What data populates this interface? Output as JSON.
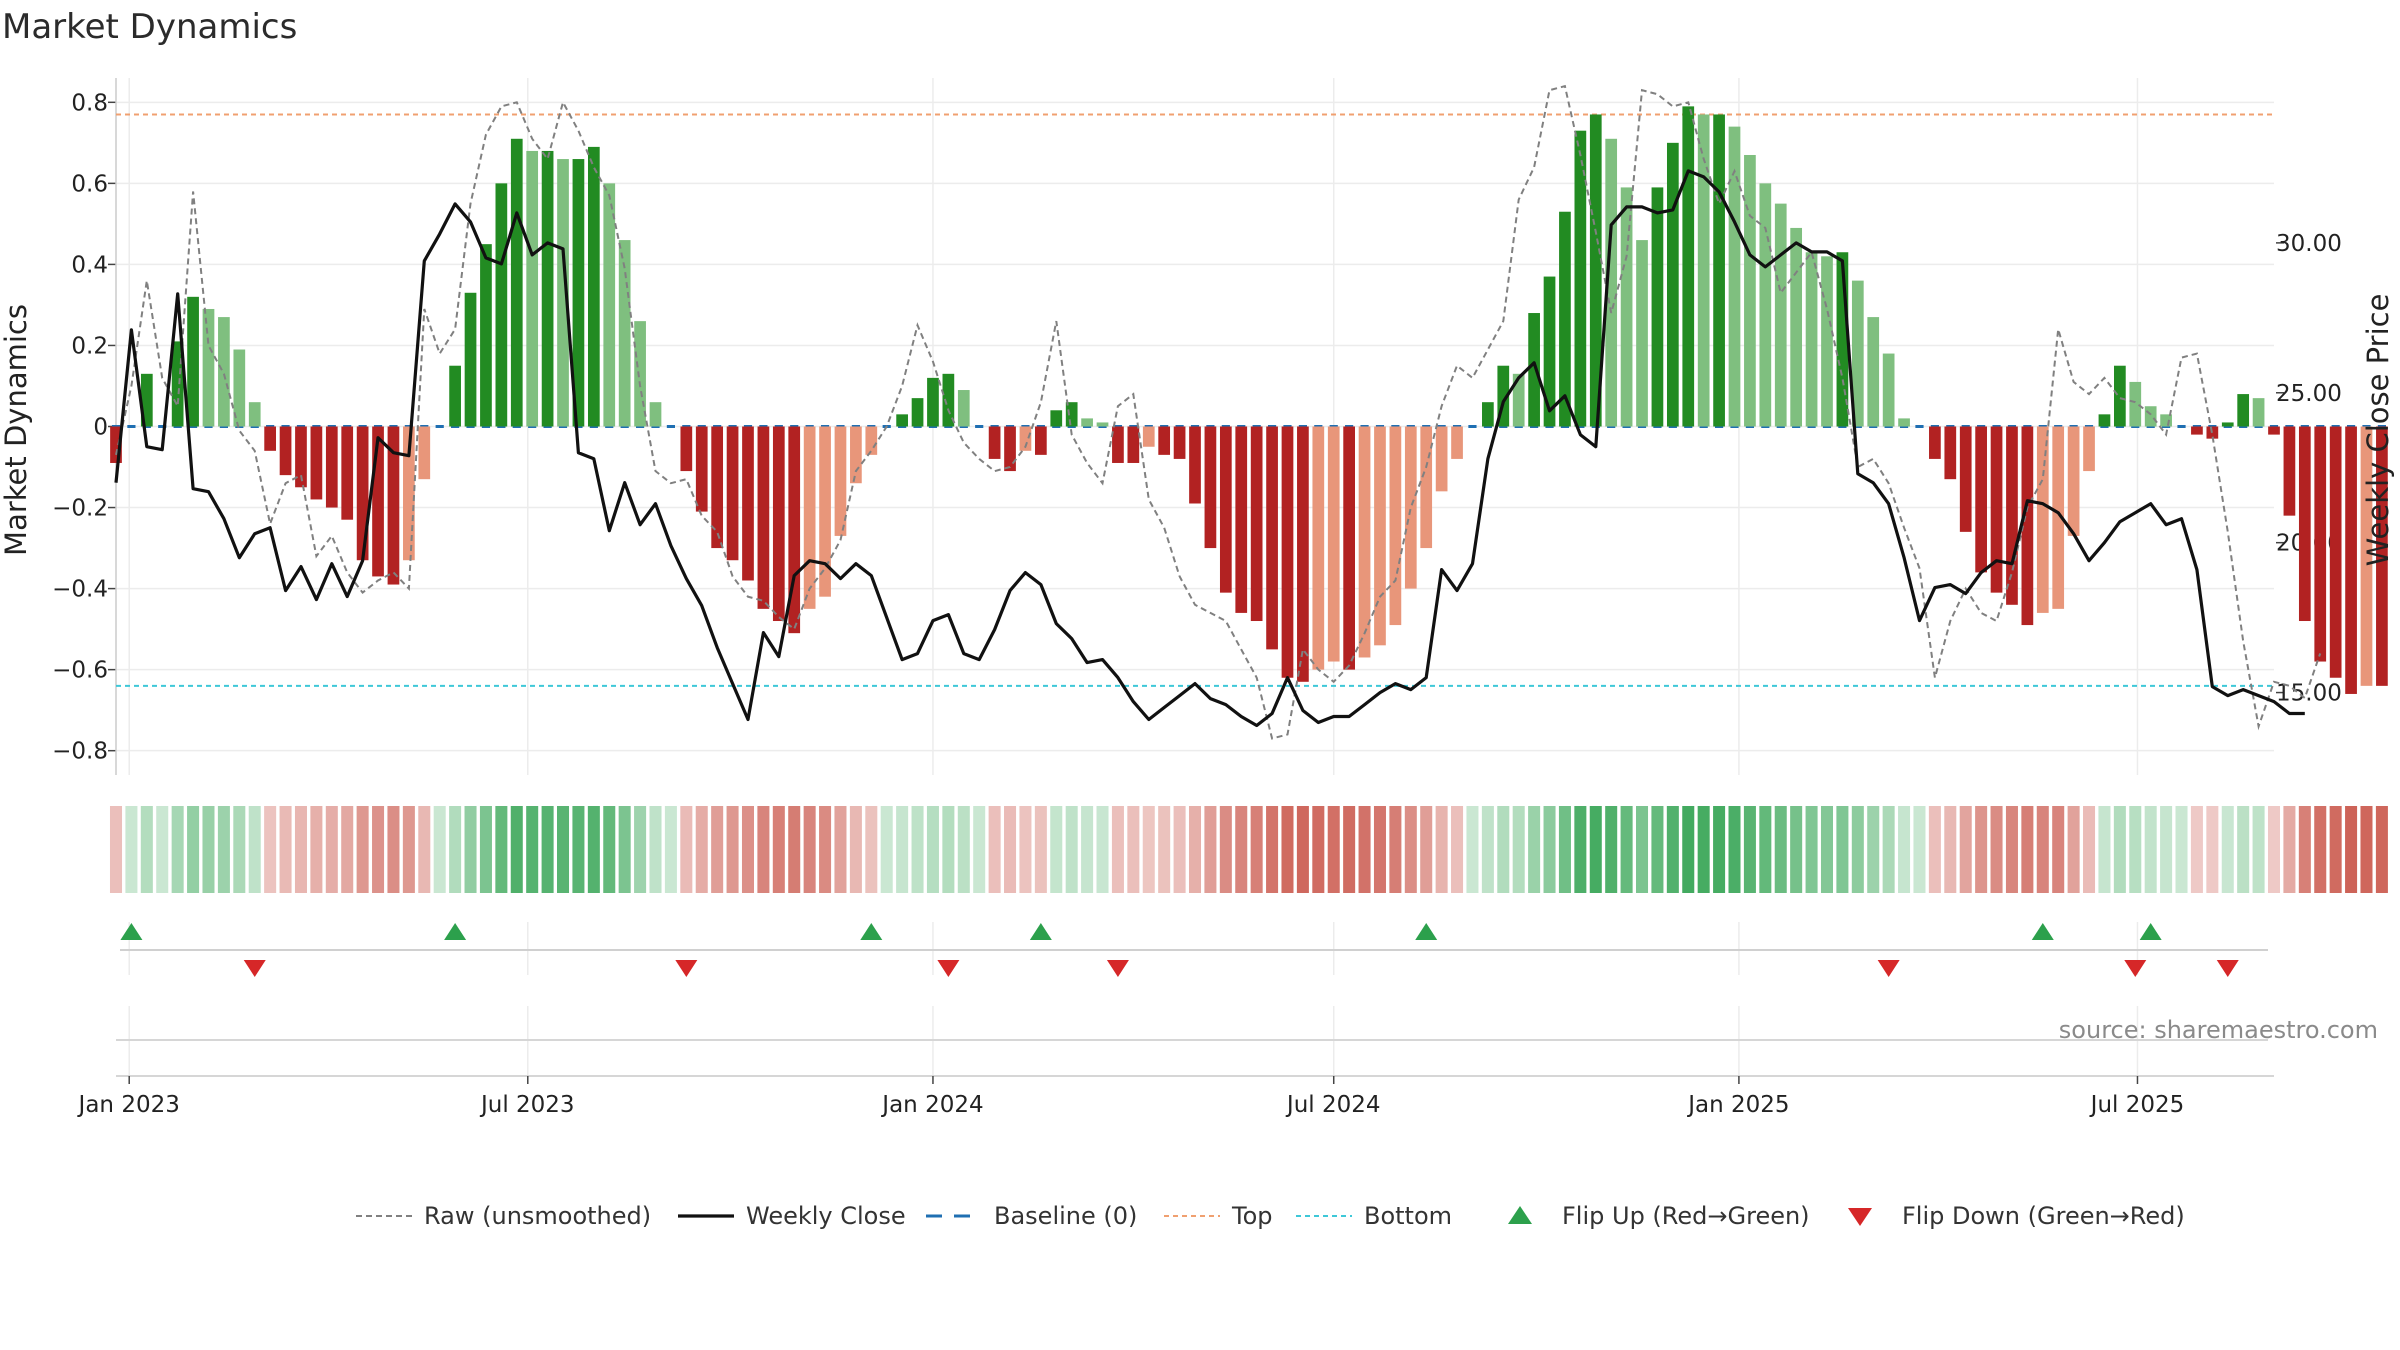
{
  "chart_data": {
    "type": "bar",
    "title": "Market Dynamics",
    "ylabel_left": "Market Dynamics",
    "ylabel_right": "Weekly Close Price",
    "source": "source: sharemaestro.com",
    "x_range": [
      "2022-12-26",
      "2025-09-01"
    ],
    "x_ticks": [
      {
        "date": "2023-01-01",
        "label": "Jan 2023"
      },
      {
        "date": "2023-07-01",
        "label": "Jul 2023"
      },
      {
        "date": "2024-01-01",
        "label": "Jan 2024"
      },
      {
        "date": "2024-07-01",
        "label": "Jul 2024"
      },
      {
        "date": "2025-01-01",
        "label": "Jan 2025"
      },
      {
        "date": "2025-07-01",
        "label": "Jul 2025"
      }
    ],
    "y_left": {
      "min": -0.86,
      "max": 0.86,
      "ticks": [
        0.8,
        0.6,
        0.4,
        0.2,
        0,
        -0.2,
        -0.4,
        -0.6,
        -0.8
      ],
      "tick_labels": [
        "0.8",
        "0.6",
        "0.4",
        "0.2",
        "0",
        "−0.2",
        "−0.4",
        "−0.6",
        "−0.8"
      ]
    },
    "y_right": {
      "min": 12.25,
      "max": 35.5,
      "ticks": [
        30,
        25,
        20,
        15
      ],
      "tick_labels": [
        "30.00",
        "25.00",
        "20.00",
        "15.00"
      ]
    },
    "top_level": 0.77,
    "bottom_level": -0.64,
    "baseline": 0,
    "start_date": "2022-12-26",
    "interval_days": 7,
    "dynamics": [
      -0.09,
      0.0,
      0.13,
      0.0,
      0.21,
      0.32,
      0.29,
      0.27,
      0.19,
      0.06,
      -0.06,
      -0.12,
      -0.15,
      -0.18,
      -0.2,
      -0.23,
      -0.33,
      -0.37,
      -0.39,
      -0.33,
      -0.13,
      0.0,
      0.15,
      0.33,
      0.45,
      0.6,
      0.71,
      0.68,
      0.68,
      0.66,
      0.66,
      0.69,
      0.6,
      0.46,
      0.26,
      0.06,
      0.0,
      -0.11,
      -0.21,
      -0.3,
      -0.33,
      -0.38,
      -0.45,
      -0.48,
      -0.51,
      -0.45,
      -0.42,
      -0.27,
      -0.14,
      -0.07,
      0.0,
      0.03,
      0.07,
      0.12,
      0.13,
      0.09,
      0.0,
      -0.08,
      -0.11,
      -0.06,
      -0.07,
      0.04,
      0.06,
      0.02,
      0.01,
      -0.09,
      -0.09,
      -0.05,
      -0.07,
      -0.08,
      -0.19,
      -0.3,
      -0.41,
      -0.46,
      -0.48,
      -0.55,
      -0.62,
      -0.63,
      -0.6,
      -0.58,
      -0.6,
      -0.57,
      -0.54,
      -0.49,
      -0.4,
      -0.3,
      -0.16,
      -0.08,
      0.0,
      0.06,
      0.15,
      0.13,
      0.28,
      0.37,
      0.53,
      0.73,
      0.77,
      0.71,
      0.59,
      0.46,
      0.59,
      0.7,
      0.79,
      0.77,
      0.77,
      0.74,
      0.67,
      0.6,
      0.55,
      0.49,
      0.43,
      0.42,
      0.43,
      0.36,
      0.27,
      0.18,
      0.02,
      0.0,
      -0.08,
      -0.13,
      -0.26,
      -0.36,
      -0.41,
      -0.44,
      -0.49,
      -0.46,
      -0.45,
      -0.27,
      -0.11,
      0.03,
      0.15,
      0.11,
      0.05,
      0.03,
      0.0,
      -0.02,
      -0.03,
      0.01,
      0.08,
      0.07,
      -0.02,
      -0.22,
      -0.48,
      -0.58,
      -0.62,
      -0.66,
      -0.64,
      -0.64
    ],
    "raw": [
      -0.07,
      0.1,
      0.36,
      0.12,
      0.05,
      0.58,
      0.2,
      0.13,
      -0.01,
      -0.06,
      -0.24,
      -0.14,
      -0.12,
      -0.32,
      -0.27,
      -0.36,
      -0.41,
      -0.38,
      -0.36,
      -0.4,
      0.29,
      0.18,
      0.24,
      0.55,
      0.72,
      0.79,
      0.8,
      0.71,
      0.66,
      0.8,
      0.73,
      0.64,
      0.57,
      0.39,
      0.1,
      -0.11,
      -0.14,
      -0.13,
      -0.22,
      -0.26,
      -0.37,
      -0.42,
      -0.43,
      -0.47,
      -0.5,
      -0.4,
      -0.35,
      -0.28,
      -0.11,
      -0.06,
      0.0,
      0.1,
      0.25,
      0.16,
      0.04,
      -0.04,
      -0.08,
      -0.11,
      -0.1,
      -0.05,
      0.06,
      0.26,
      -0.02,
      -0.09,
      -0.14,
      0.05,
      0.08,
      -0.18,
      -0.25,
      -0.37,
      -0.44,
      -0.46,
      -0.48,
      -0.55,
      -0.62,
      -0.77,
      -0.76,
      -0.55,
      -0.6,
      -0.63,
      -0.59,
      -0.51,
      -0.42,
      -0.38,
      -0.2,
      -0.1,
      0.05,
      0.15,
      0.12,
      0.19,
      0.26,
      0.56,
      0.64,
      0.83,
      0.84,
      0.67,
      0.48,
      0.28,
      0.42,
      0.83,
      0.82,
      0.79,
      0.8,
      0.66,
      0.55,
      0.63,
      0.52,
      0.49,
      0.33,
      0.38,
      0.43,
      0.29,
      0.12,
      -0.1,
      -0.08,
      -0.14,
      -0.25,
      -0.35,
      -0.62,
      -0.48,
      -0.4,
      -0.46,
      -0.48,
      -0.36,
      -0.2,
      -0.13,
      0.24,
      0.11,
      0.08,
      0.12,
      0.07,
      0.06,
      0.03,
      -0.02,
      0.17,
      0.18,
      -0.02,
      -0.26,
      -0.53,
      -0.74,
      -0.63,
      -0.64,
      -0.67,
      -0.56
    ],
    "close": [
      22.0,
      27.1,
      23.2,
      23.1,
      28.3,
      21.8,
      21.7,
      20.8,
      19.5,
      20.3,
      20.5,
      18.4,
      19.2,
      18.1,
      19.3,
      18.2,
      19.4,
      23.5,
      23.0,
      22.9,
      29.4,
      30.3,
      31.3,
      30.7,
      29.5,
      29.3,
      31.0,
      29.6,
      30.0,
      29.8,
      23.0,
      22.8,
      20.4,
      22.0,
      20.6,
      21.3,
      19.9,
      18.8,
      17.9,
      16.5,
      15.3,
      14.1,
      17.0,
      16.2,
      18.9,
      19.4,
      19.3,
      18.8,
      19.3,
      18.9,
      17.5,
      16.1,
      16.3,
      17.4,
      17.6,
      16.3,
      16.1,
      17.1,
      18.4,
      19.0,
      18.6,
      17.3,
      16.8,
      16.0,
      16.1,
      15.5,
      14.7,
      14.1,
      14.5,
      14.9,
      15.3,
      14.8,
      14.6,
      14.2,
      13.9,
      14.3,
      15.5,
      14.4,
      14.0,
      14.2,
      14.2,
      14.6,
      15.0,
      15.3,
      15.1,
      15.5,
      19.1,
      18.4,
      19.3,
      22.8,
      24.7,
      25.5,
      26.0,
      24.4,
      24.9,
      23.6,
      23.2,
      30.6,
      31.2,
      31.2,
      31.0,
      31.1,
      32.4,
      32.2,
      31.7,
      30.7,
      29.6,
      29.2,
      29.6,
      30.0,
      29.7,
      29.7,
      29.4,
      22.3,
      22.0,
      21.3,
      19.5,
      17.4,
      18.5,
      18.6,
      18.3,
      19.0,
      19.4,
      19.3,
      21.4,
      21.3,
      21.0,
      20.3,
      19.4,
      20.0,
      20.7,
      21.0,
      21.3,
      20.6,
      20.8,
      19.1,
      15.2,
      14.9,
      15.1,
      14.9,
      14.7,
      14.3,
      14.3
    ],
    "flips_up": [
      "2023-01-02",
      "2023-05-29",
      "2023-12-04",
      "2024-02-19",
      "2024-08-12",
      "2025-05-19",
      "2025-07-07"
    ],
    "flips_down": [
      "2023-02-27",
      "2023-09-11",
      "2024-01-08",
      "2024-03-25",
      "2025-03-10",
      "2025-06-30",
      "2025-08-11"
    ],
    "legend": [
      {
        "key": "raw",
        "label": "Raw (unsmoothed)"
      },
      {
        "key": "close",
        "label": "Weekly Close"
      },
      {
        "key": "baseline",
        "label": "Baseline (0)"
      },
      {
        "key": "top",
        "label": "Top"
      },
      {
        "key": "bottom",
        "label": "Bottom"
      },
      {
        "key": "flip_up",
        "label": "Flip Up (Red→Green)"
      },
      {
        "key": "flip_down",
        "label": "Flip Down (Green→Red)"
      }
    ],
    "colors": {
      "green_dark": "#228b22",
      "green_light": "#7fbf7f",
      "red_dark": "#b22222",
      "red_light": "#e8967a",
      "raw": "#808080",
      "close": "#111111",
      "baseline": "#1f6fb2",
      "top": "#f0a070",
      "bottom": "#3ec8d8",
      "flip_up": "#2ca04c",
      "flip_down": "#d62728"
    }
  }
}
